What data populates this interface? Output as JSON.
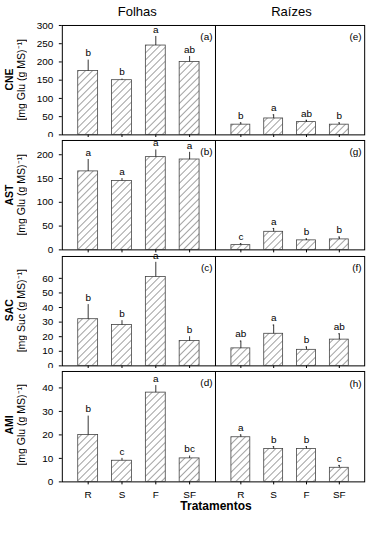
{
  "column_titles": [
    "Folhas",
    "Raízes"
  ],
  "x_label": "Tratamentos",
  "chart_data": [
    {
      "type": "bar",
      "title": "(a)",
      "y_label": "CNE",
      "y_unit": "[mg Glu (g MS)⁻¹]",
      "categories": [
        "R",
        "S",
        "F",
        "SF"
      ],
      "values": [
        175,
        150,
        245,
        200
      ],
      "errors": [
        30,
        3,
        25,
        15
      ],
      "annotations": [
        "b",
        "b",
        "a",
        "ab"
      ],
      "ylim": [
        0,
        300
      ],
      "yticks": [
        0,
        50,
        100,
        150,
        200,
        250,
        300
      ],
      "tick_labels": "y",
      "color": "#444444"
    },
    {
      "type": "bar",
      "title": "(e)",
      "categories": [
        "R",
        "S",
        "F",
        "SF"
      ],
      "values": [
        28,
        45,
        35,
        28
      ],
      "errors": [
        5,
        10,
        5,
        5
      ],
      "annotations": [
        "b",
        "a",
        "ab",
        "b"
      ],
      "ylim": [
        0,
        300
      ],
      "yticks": [
        0,
        50,
        100,
        150,
        200,
        250,
        300
      ],
      "tick_labels": false,
      "color": "#444444"
    },
    {
      "type": "bar",
      "title": "(b)",
      "y_label": "AST",
      "y_unit": "[mg Glu (g MS)⁻¹]",
      "categories": [
        "R",
        "S",
        "F",
        "SF"
      ],
      "values": [
        165,
        145,
        195,
        190
      ],
      "errors": [
        25,
        5,
        15,
        15
      ],
      "annotations": [
        "a",
        "a",
        "a",
        "a"
      ],
      "ylim": [
        0,
        230
      ],
      "yticks": [
        0,
        50,
        100,
        150,
        200
      ],
      "tick_labels": "y",
      "color": "#444444"
    },
    {
      "type": "bar",
      "title": "(g)",
      "categories": [
        "R",
        "S",
        "F",
        "SF"
      ],
      "values": [
        10,
        38,
        20,
        22
      ],
      "errors": [
        3,
        7,
        3,
        5
      ],
      "annotations": [
        "c",
        "a",
        "b",
        "b"
      ],
      "ylim": [
        0,
        230
      ],
      "yticks": [
        0,
        50,
        100,
        150,
        200
      ],
      "tick_labels": false,
      "color": "#444444"
    },
    {
      "type": "bar",
      "title": "(c)",
      "y_label": "SAC",
      "y_unit": "[mg Suc (g MS)⁻¹]",
      "categories": [
        "R",
        "S",
        "F",
        "SF"
      ],
      "values": [
        32,
        28,
        61,
        17
      ],
      "errors": [
        10,
        3,
        10,
        3
      ],
      "annotations": [
        "b",
        "b",
        "a",
        "b"
      ],
      "ylim": [
        0,
        75
      ],
      "yticks": [
        0,
        10,
        20,
        30,
        40,
        50,
        60
      ],
      "tick_labels": "y",
      "color": "#444444"
    },
    {
      "type": "bar",
      "title": "(f)",
      "categories": [
        "R",
        "S",
        "F",
        "SF"
      ],
      "values": [
        12,
        22,
        11,
        18
      ],
      "errors": [
        5,
        6,
        2,
        4
      ],
      "annotations": [
        "ab",
        "a",
        "b",
        "ab"
      ],
      "ylim": [
        0,
        75
      ],
      "yticks": [
        0,
        10,
        20,
        30,
        40,
        50,
        60
      ],
      "tick_labels": false,
      "color": "#444444"
    },
    {
      "type": "bar",
      "title": "(d)",
      "y_label": "AMI",
      "y_unit": "[mg Glu (g MS)⁻¹]",
      "categories": [
        "R",
        "S",
        "F",
        "SF"
      ],
      "values": [
        20,
        9,
        38,
        10
      ],
      "errors": [
        8,
        1,
        3,
        1
      ],
      "annotations": [
        "b",
        "c",
        "a",
        "bc"
      ],
      "ylim": [
        0,
        47
      ],
      "yticks": [
        0,
        10,
        20,
        30,
        40
      ],
      "tick_labels": true,
      "color": "#444444"
    },
    {
      "type": "bar",
      "title": "(h)",
      "categories": [
        "R",
        "S",
        "F",
        "SF"
      ],
      "values": [
        19,
        14,
        14,
        6
      ],
      "errors": [
        1,
        1,
        1,
        1
      ],
      "annotations": [
        "a",
        "b",
        "b",
        "c"
      ],
      "ylim": [
        0,
        47
      ],
      "yticks": [
        0,
        10,
        20,
        30,
        40
      ],
      "tick_labels": "x",
      "color": "#444444"
    }
  ]
}
